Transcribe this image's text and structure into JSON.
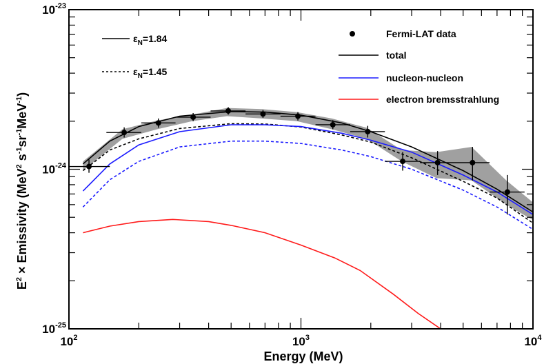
{
  "chart_data": {
    "type": "line",
    "x_scale": "log",
    "y_scale": "log",
    "xlim": [
      100,
      10000
    ],
    "ylim": [
      1e-25,
      1e-23
    ],
    "xlabel": "Energy (MeV)",
    "ylabel_parts": {
      "prefix": "E",
      "prefix_sup": "2",
      "times": " × Emissivity (MeV",
      "unit_sup1": "2",
      "mid1": " s",
      "unit_sup2": "-1",
      "mid2": "sr",
      "unit_sup3": "-1",
      "mid3": "MeV",
      "unit_sup4": "-1",
      "suffix": ")"
    },
    "x_ticks": [
      {
        "value": 100,
        "base": "10",
        "exp": "2"
      },
      {
        "value": 1000,
        "base": "10",
        "exp": "3"
      },
      {
        "value": 10000,
        "base": "10",
        "exp": "4"
      }
    ],
    "y_ticks": [
      {
        "value": 1e-25,
        "base": "10",
        "exp": "-25"
      },
      {
        "value": 1e-24,
        "base": "10",
        "exp": "-24"
      },
      {
        "value": 1e-23,
        "base": "10",
        "exp": "-23"
      }
    ],
    "legend": [
      {
        "label": "Fermi-LAT data",
        "kind": "marker",
        "color": "#000000"
      },
      {
        "label": "total",
        "kind": "line",
        "color": "#000000"
      },
      {
        "label": "nucleon-nucleon",
        "kind": "line",
        "color": "#1a1aff"
      },
      {
        "label": "electron bremsstrahlung",
        "kind": "line",
        "color": "#ff1a1a"
      }
    ],
    "style_legend": [
      {
        "symbol": "ε",
        "subscript": "N",
        "value": "=1.84",
        "dash": false
      },
      {
        "symbol": "ε",
        "subscript": "N",
        "value": "=1.45",
        "dash": true
      }
    ],
    "band": {
      "name": "systematic uncertainty",
      "color": "#a0a0a0",
      "x": [
        115,
        170,
        240,
        340,
        480,
        680,
        960,
        1360,
        1920,
        2720,
        3840,
        5440,
        7680,
        10000
      ],
      "lower": [
        9.8e-25,
        1.55e-24,
        1.78e-24,
        2e-24,
        2.15e-24,
        2.08e-24,
        2e-24,
        1.78e-24,
        1.55e-24,
        1.12e-24,
        8.8e-25,
        8.5e-25,
        6e-25,
        4.8e-25
      ],
      "upper": [
        1.12e-24,
        1.78e-24,
        2.02e-24,
        2.2e-24,
        2.42e-24,
        2.38e-24,
        2.28e-24,
        2.08e-24,
        1.82e-24,
        1.32e-24,
        1.28e-24,
        1.38e-24,
        8.5e-25,
        6.2e-25
      ]
    },
    "data_points": [
      {
        "x": 122,
        "y": 1.04e-24,
        "xlo": 100,
        "xhi": 150,
        "ylo": 9.5e-25,
        "yhi": 1.15e-24
      },
      {
        "x": 173,
        "y": 1.7e-24,
        "xlo": 145,
        "xhi": 205,
        "ylo": 1.58e-24,
        "yhi": 1.83e-24
      },
      {
        "x": 243,
        "y": 1.95e-24,
        "xlo": 205,
        "xhi": 288,
        "ylo": 1.82e-24,
        "yhi": 2.08e-24
      },
      {
        "x": 343,
        "y": 2.12e-24,
        "xlo": 288,
        "xhi": 408,
        "ylo": 2e-24,
        "yhi": 2.25e-24
      },
      {
        "x": 486,
        "y": 2.32e-24,
        "xlo": 408,
        "xhi": 577,
        "ylo": 2.2e-24,
        "yhi": 2.45e-24
      },
      {
        "x": 686,
        "y": 2.22e-24,
        "xlo": 577,
        "xhi": 816,
        "ylo": 2.1e-24,
        "yhi": 2.35e-24
      },
      {
        "x": 970,
        "y": 2.15e-24,
        "xlo": 816,
        "xhi": 1155,
        "ylo": 2.02e-24,
        "yhi": 2.28e-24
      },
      {
        "x": 1372,
        "y": 1.9e-24,
        "xlo": 1155,
        "xhi": 1630,
        "ylo": 1.78e-24,
        "yhi": 2.03e-24
      },
      {
        "x": 1940,
        "y": 1.72e-24,
        "xlo": 1630,
        "xhi": 2300,
        "ylo": 1.58e-24,
        "yhi": 1.87e-24
      },
      {
        "x": 2744,
        "y": 1.12e-24,
        "xlo": 2300,
        "xhi": 3260,
        "ylo": 9.8e-25,
        "yhi": 1.28e-24
      },
      {
        "x": 3880,
        "y": 1.1e-24,
        "xlo": 3260,
        "xhi": 4600,
        "ylo": 9.2e-25,
        "yhi": 1.3e-24
      },
      {
        "x": 5488,
        "y": 1.1e-24,
        "xlo": 4600,
        "xhi": 6500,
        "ylo": 8.5e-25,
        "yhi": 1.38e-24
      },
      {
        "x": 7760,
        "y": 7.2e-25,
        "xlo": 6500,
        "xhi": 9200,
        "ylo": 5.2e-25,
        "yhi": 9.2e-25
      }
    ],
    "series": [
      {
        "name": "total",
        "color": "#000000",
        "dash": false,
        "x": [
          115,
          150,
          200,
          300,
          500,
          700,
          1000,
          1500,
          2000,
          3000,
          5000,
          7000,
          10000
        ],
        "y": [
          1.08e-24,
          1.5e-24,
          1.85e-24,
          2.15e-24,
          2.3e-24,
          2.28e-24,
          2.18e-24,
          1.95e-24,
          1.72e-24,
          1.38e-24,
          9.8e-25,
          7.5e-25,
          5.4e-25
        ]
      },
      {
        "name": "total",
        "color": "#000000",
        "dash": true,
        "x": [
          115,
          150,
          200,
          300,
          500,
          700,
          1000,
          1500,
          2000,
          3000,
          5000,
          7000,
          10000
        ],
        "y": [
          9.8e-25,
          1.32e-24,
          1.55e-24,
          1.8e-24,
          1.93e-24,
          1.92e-24,
          1.84e-24,
          1.64e-24,
          1.48e-24,
          1.18e-24,
          8.4e-25,
          6.6e-25,
          4.6e-25
        ]
      },
      {
        "name": "nucleon-nucleon",
        "color": "#1a1aff",
        "dash": false,
        "x": [
          115,
          150,
          200,
          300,
          500,
          700,
          1000,
          1500,
          2000,
          3000,
          5000,
          7000,
          10000
        ],
        "y": [
          7.3e-25,
          1.08e-24,
          1.42e-24,
          1.72e-24,
          1.9e-24,
          1.9e-24,
          1.85e-24,
          1.68e-24,
          1.52e-24,
          1.28e-24,
          9.2e-25,
          7.2e-25,
          5.2e-25
        ]
      },
      {
        "name": "nucleon-nucleon",
        "color": "#1a1aff",
        "dash": true,
        "x": [
          115,
          150,
          200,
          300,
          500,
          700,
          1000,
          1500,
          2000,
          3000,
          5000,
          7000,
          10000
        ],
        "y": [
          5.8e-25,
          8.6e-25,
          1.12e-24,
          1.38e-24,
          1.5e-24,
          1.5e-24,
          1.45e-24,
          1.32e-24,
          1.2e-24,
          1e-24,
          7.4e-25,
          5.8e-25,
          4.2e-25
        ]
      },
      {
        "name": "electron bremsstrahlung",
        "color": "#ff1a1a",
        "dash": false,
        "x": [
          115,
          150,
          200,
          280,
          400,
          500,
          700,
          1000,
          1400,
          1800,
          2500,
          3200,
          4000
        ],
        "y": [
          4e-25,
          4.4e-25,
          4.7e-25,
          4.85e-25,
          4.7e-25,
          4.45e-25,
          4e-25,
          3.35e-25,
          2.78e-25,
          2.32e-25,
          1.65e-25,
          1.25e-25,
          1e-25
        ]
      }
    ]
  }
}
